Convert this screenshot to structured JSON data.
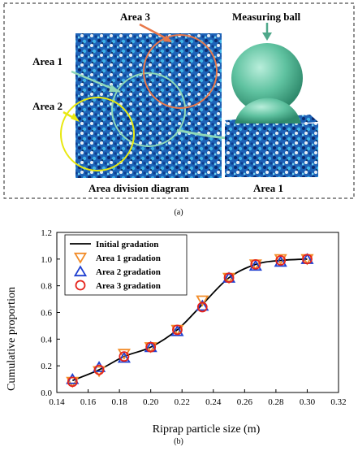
{
  "figure_a": {
    "annotations": {
      "area1": "Area 1",
      "area2": "Area 2",
      "area3": "Area 3",
      "measuring_ball": "Measuring ball"
    },
    "captions": {
      "left": "Area division diagram",
      "right": "Area 1"
    },
    "panel_label": "(a)"
  },
  "figure_b": {
    "panel_label": "(b)"
  },
  "chart_data": {
    "type": "line",
    "xlabel": "Riprap particle size (m)",
    "ylabel": "Cumulative proportion",
    "xlim": [
      0.14,
      0.32
    ],
    "ylim": [
      0.0,
      1.2
    ],
    "xticks": [
      "0.14",
      "0.16",
      "0.18",
      "0.20",
      "0.22",
      "0.24",
      "0.26",
      "0.28",
      "0.30",
      "0.32"
    ],
    "yticks": [
      "0.0",
      "0.2",
      "0.4",
      "0.6",
      "0.8",
      "1.0",
      "1.2"
    ],
    "legend_position": "top-left",
    "grid": false,
    "x": [
      0.15,
      0.167,
      0.183,
      0.2,
      0.217,
      0.233,
      0.25,
      0.267,
      0.283,
      0.3
    ],
    "series": [
      {
        "name": "Initial gradation",
        "marker": "line",
        "color": "#000000",
        "values": [
          0.09,
          0.17,
          0.27,
          0.34,
          0.47,
          0.66,
          0.86,
          0.96,
          0.99,
          1.0
        ]
      },
      {
        "name": "Area 1 gradation",
        "marker": "triangle-down",
        "color": "#f28c28",
        "values": [
          0.08,
          0.16,
          0.29,
          0.34,
          0.47,
          0.69,
          0.86,
          0.96,
          1.0,
          1.0
        ]
      },
      {
        "name": "Area 2 gradation",
        "marker": "triangle-up",
        "color": "#1f3fd0",
        "values": [
          0.1,
          0.19,
          0.26,
          0.34,
          0.46,
          0.65,
          0.86,
          0.95,
          0.98,
          1.0
        ]
      },
      {
        "name": "Area 3 gradation",
        "marker": "circle",
        "color": "#e5231b",
        "values": [
          0.08,
          0.17,
          0.27,
          0.34,
          0.47,
          0.64,
          0.86,
          0.96,
          0.99,
          1.0
        ]
      }
    ]
  }
}
